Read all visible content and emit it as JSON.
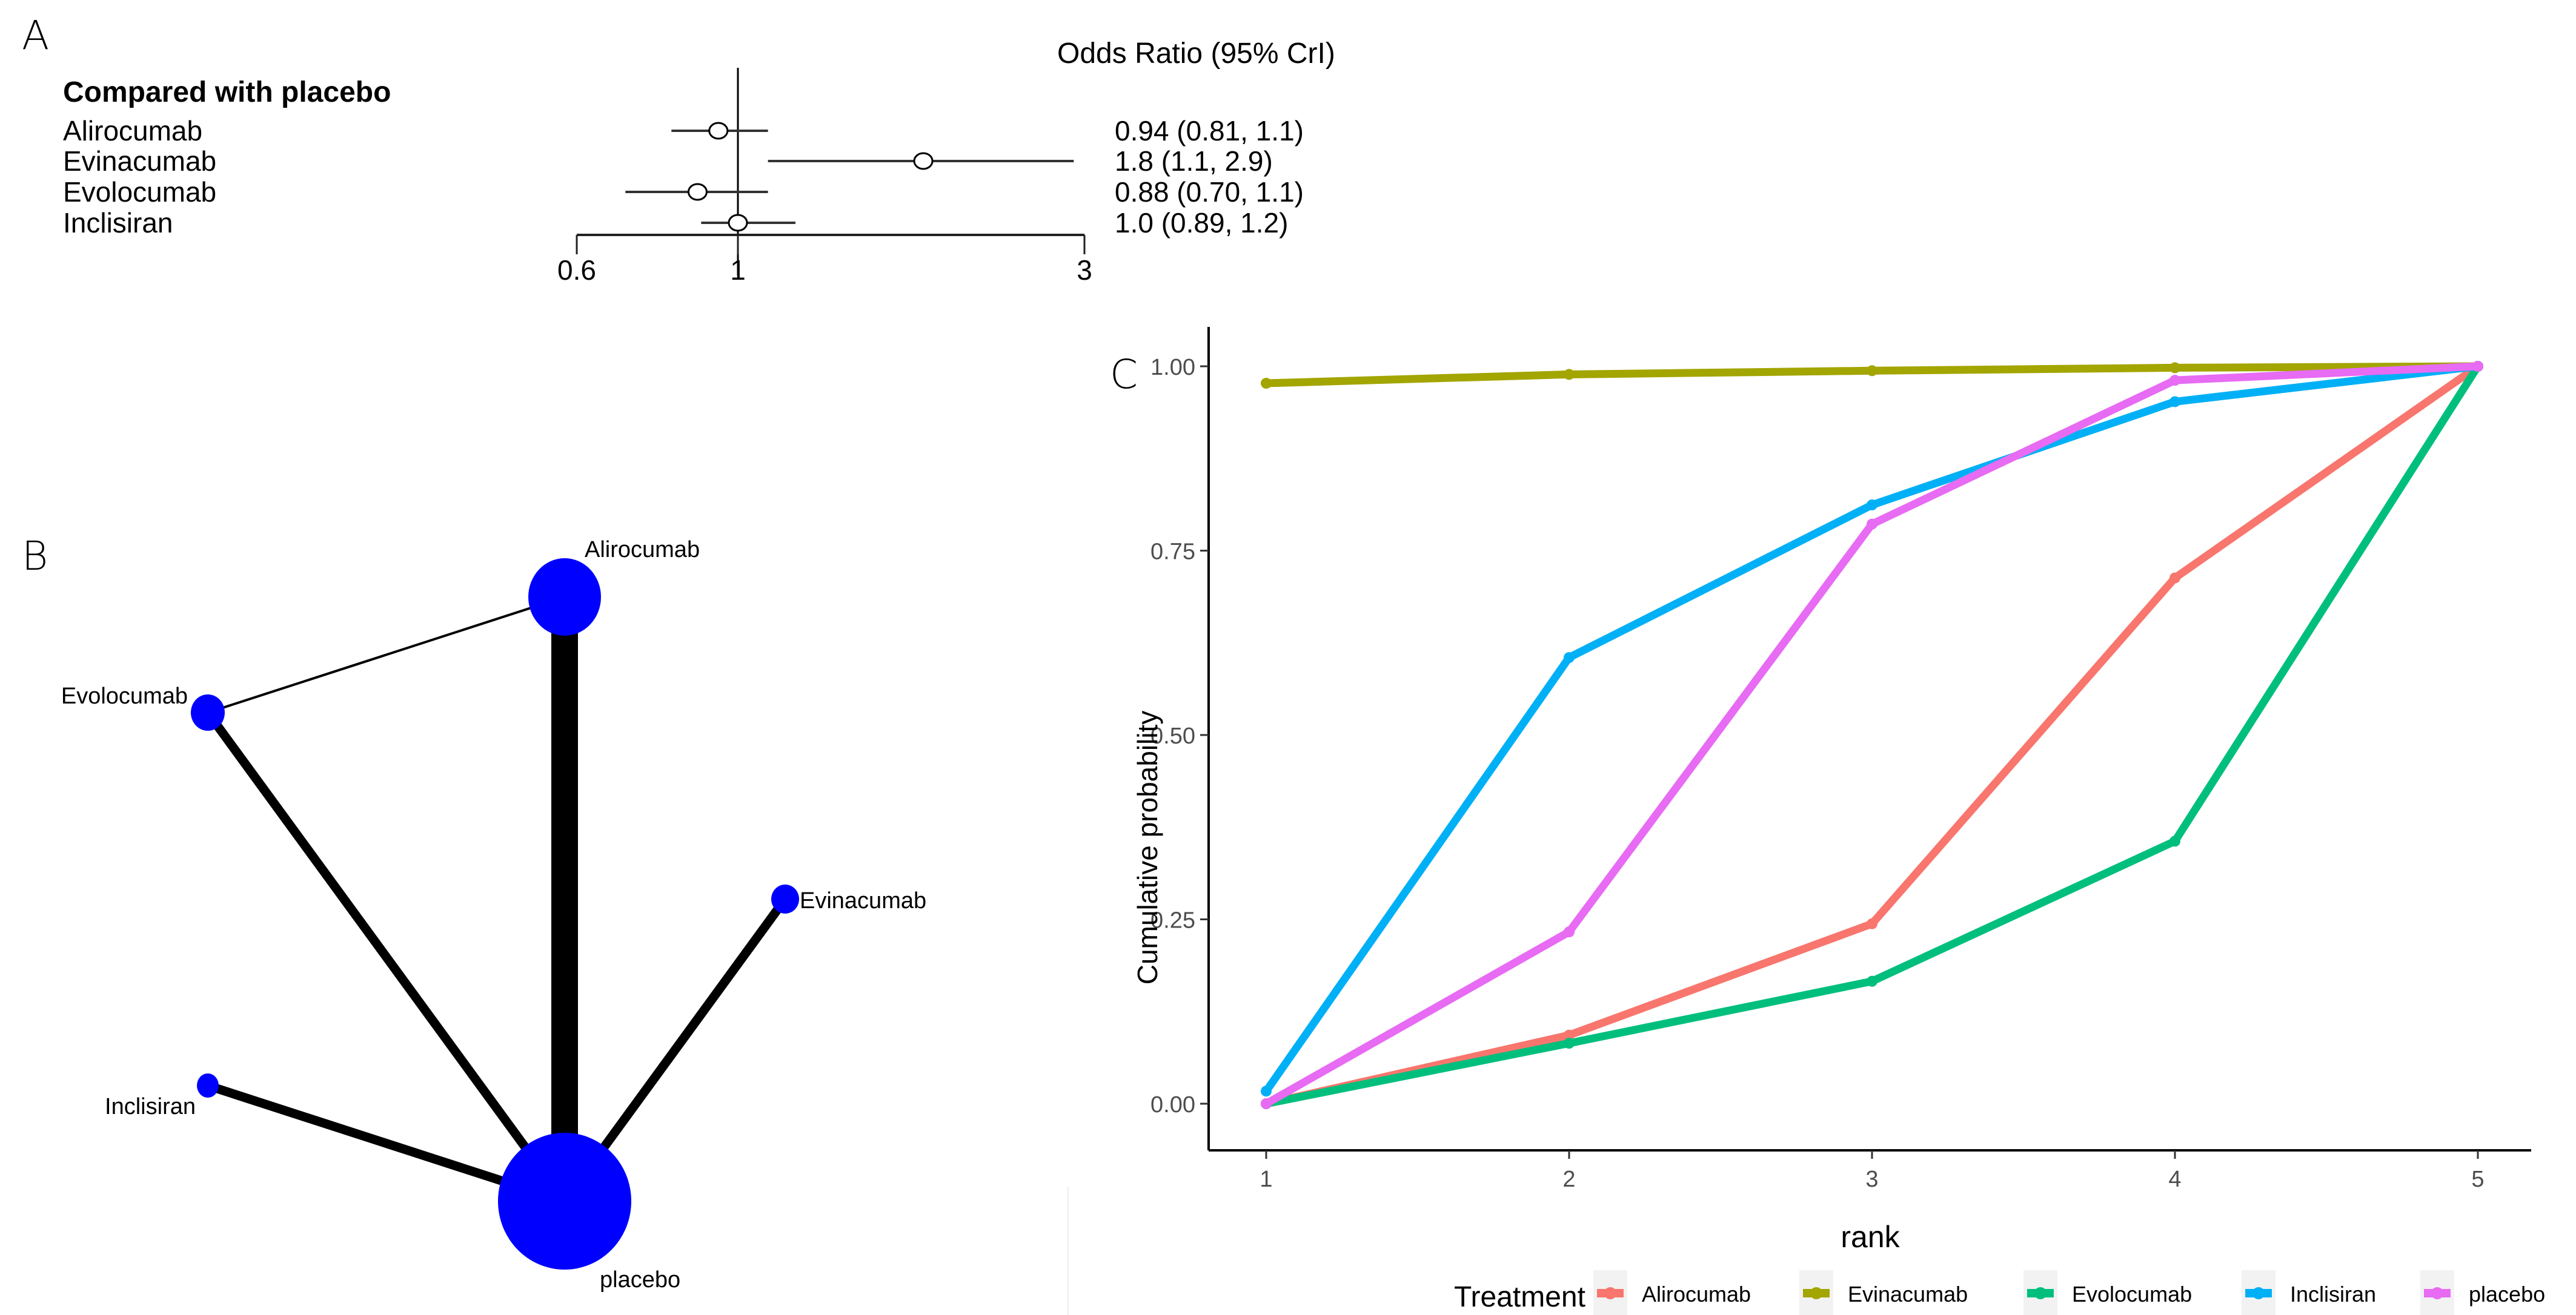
{
  "panels": {
    "a_label": "A",
    "b_label": "B",
    "c_label": "C"
  },
  "forest": {
    "header_left": "Compared with placebo",
    "header_right": "Odds Ratio (95% CrI)",
    "axis_ticks": [
      "0.6",
      "1",
      "3"
    ],
    "tick_values": [
      0.6,
      1,
      3
    ],
    "reference_value": 1,
    "rows": [
      {
        "name": "Alirocumab",
        "or": 0.94,
        "lo": 0.81,
        "hi": 1.1,
        "label": "0.94 (0.81, 1.1)"
      },
      {
        "name": "Evinacumab",
        "or": 1.8,
        "lo": 1.1,
        "hi": 2.9,
        "label": "1.8 (1.1, 2.9)"
      },
      {
        "name": "Evolocumab",
        "or": 0.88,
        "lo": 0.7,
        "hi": 1.1,
        "label": "0.88 (0.70, 1.1)"
      },
      {
        "name": "Inclisiran",
        "or": 1.0,
        "lo": 0.89,
        "hi": 1.2,
        "label": "1.0 (0.89, 1.2)"
      }
    ]
  },
  "network": {
    "node_color": "#0000ff",
    "nodes": [
      {
        "id": "Alirocumab",
        "label": "Alirocumab",
        "size": "large"
      },
      {
        "id": "Evolocumab",
        "label": "Evolocumab",
        "size": "small"
      },
      {
        "id": "Evinacumab",
        "label": "Evinacumab",
        "size": "small"
      },
      {
        "id": "Inclisiran",
        "label": "Inclisiran",
        "size": "small"
      },
      {
        "id": "placebo",
        "label": "placebo",
        "size": "largest"
      }
    ],
    "edges": [
      {
        "from": "Alirocumab",
        "to": "placebo",
        "weight": "thickest"
      },
      {
        "from": "Evolocumab",
        "to": "placebo",
        "weight": "medium"
      },
      {
        "from": "Evinacumab",
        "to": "placebo",
        "weight": "medium"
      },
      {
        "from": "Inclisiran",
        "to": "placebo",
        "weight": "medium"
      },
      {
        "from": "Alirocumab",
        "to": "Evolocumab",
        "weight": "thin"
      }
    ]
  },
  "chart_data": {
    "type": "line",
    "title": "",
    "xlabel": "rank",
    "ylabel": "Cumulative probability",
    "x": [
      1,
      2,
      3,
      4,
      5
    ],
    "xticks": [
      "1",
      "2",
      "3",
      "4",
      "5"
    ],
    "yticks": [
      "0.00",
      "0.25",
      "0.50",
      "0.75",
      "1.00"
    ],
    "ytick_values": [
      0,
      0.25,
      0.5,
      0.75,
      1.0
    ],
    "ylim": [
      -0.03,
      1.03
    ],
    "xlim": [
      0.8,
      5.2
    ],
    "grid": false,
    "legend": {
      "title": "Treatment",
      "placement": "bottom"
    },
    "series": [
      {
        "name": "Alirocumab",
        "color": "#F8766D",
        "values": [
          0.0,
          0.093,
          0.244,
          0.713,
          1.0
        ]
      },
      {
        "name": "Evinacumab",
        "color": "#A3A500",
        "values": [
          0.977,
          0.989,
          0.994,
          0.998,
          1.0
        ]
      },
      {
        "name": "Evolocumab",
        "color": "#00BF7D",
        "values": [
          0.0,
          0.082,
          0.166,
          0.356,
          1.0
        ]
      },
      {
        "name": "Inclisiran",
        "color": "#00B0F6",
        "values": [
          0.017,
          0.605,
          0.812,
          0.952,
          1.0
        ]
      },
      {
        "name": "placebo",
        "color": "#E76BF3",
        "values": [
          0.0,
          0.233,
          0.786,
          0.981,
          1.0
        ]
      }
    ]
  }
}
